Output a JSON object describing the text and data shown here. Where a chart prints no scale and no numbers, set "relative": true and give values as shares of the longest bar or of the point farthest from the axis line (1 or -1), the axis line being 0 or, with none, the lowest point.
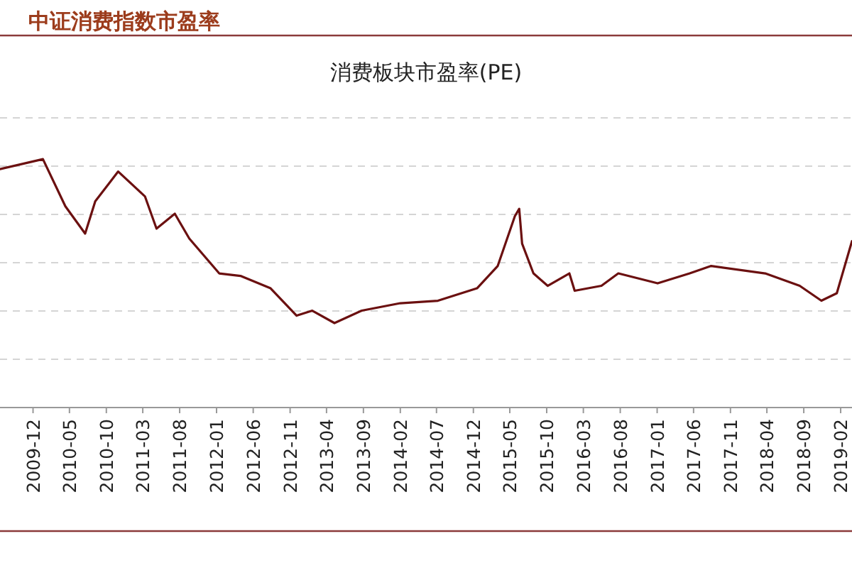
{
  "chart_data": {
    "type": "line",
    "title": "中证消费指数市盈率",
    "subtitle": "消费板块市盈率(PE)",
    "relative": true,
    "grid": "y",
    "color": "#6b1010",
    "x": [
      "2009-07-17",
      "2010-01-11",
      "2010-04-14",
      "2010-07-05",
      "2010-08-16",
      "2010-11-19",
      "2011-03-10",
      "2011-04-27",
      "2011-07-12",
      "2011-09-10",
      "2012-01-12",
      "2012-04-09",
      "2012-08-12",
      "2012-11-28",
      "2013-02-01",
      "2013-05-04",
      "2013-08-25",
      "2014-02-01",
      "2014-07-07",
      "2014-12-16",
      "2015-03-12",
      "2015-05-22",
      "2015-06-09",
      "2015-06-21",
      "2015-08-07",
      "2015-10-05",
      "2016-01-03",
      "2016-01-25",
      "2016-05-15",
      "2016-07-24",
      "2017-01-03",
      "2017-05-16",
      "2017-08-13",
      "2018-03-25",
      "2018-08-15",
      "2018-11-13",
      "2019-01-16",
      "2019-03-20"
    ],
    "values": [
      0.96,
      1.0,
      0.81,
      0.7,
      0.83,
      0.95,
      0.85,
      0.72,
      0.78,
      0.68,
      0.54,
      0.53,
      0.48,
      0.37,
      0.39,
      0.34,
      0.39,
      0.42,
      0.43,
      0.48,
      0.57,
      0.77,
      0.8,
      0.66,
      0.54,
      0.49,
      0.54,
      0.47,
      0.49,
      0.54,
      0.5,
      0.54,
      0.57,
      0.54,
      0.49,
      0.43,
      0.46,
      0.67
    ],
    "xlim": [
      "2009-07-17",
      "2019-03-20"
    ],
    "xticks": [
      "2009-12",
      "2010-05",
      "2010-10",
      "2011-03",
      "2011-08",
      "2012-01",
      "2012-06",
      "2012-11",
      "2013-04",
      "2013-09",
      "2014-02",
      "2014-07",
      "2014-12",
      "2015-05",
      "2015-10",
      "2016-03",
      "2016-08",
      "2017-01",
      "2017-06",
      "2017-11",
      "2018-04",
      "2018-09",
      "2019-02"
    ]
  }
}
